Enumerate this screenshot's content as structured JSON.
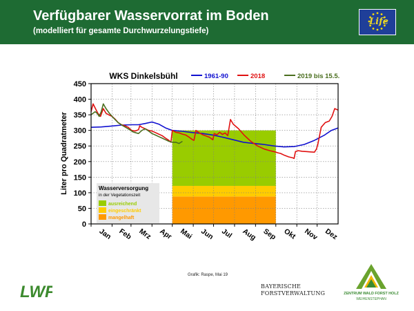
{
  "header": {
    "title": "Verfügbarer Wasservorrat im Boden",
    "subtitle": "(modelliert für gesamte Durchwurzelungstiefe)",
    "color": "#1e6b33"
  },
  "eu_logo": {
    "text": "Life",
    "icon": "eu-flag-icon"
  },
  "chart_data": {
    "type": "line",
    "title": "WKS Dinkelsbühl",
    "ylabel": "Liter pro Quadratmeter",
    "xlabel": "",
    "ylim": [
      0,
      450
    ],
    "yticks": [
      0,
      50,
      100,
      150,
      200,
      250,
      300,
      350,
      400,
      450
    ],
    "xlim": [
      0,
      365
    ],
    "months": [
      "Jan",
      "Feb",
      "Mrz",
      "Apr",
      "Mai",
      "Jun",
      "Jul",
      "Aug",
      "Sep",
      "Okt",
      "Nov",
      "Dez"
    ],
    "month_starts": [
      0,
      31,
      59,
      90,
      120,
      151,
      181,
      212,
      243,
      273,
      304,
      334
    ],
    "grid": true,
    "legend_position": "top",
    "series": [
      {
        "name": "1961-90",
        "color": "#1010d0",
        "x": [
          0,
          15,
          30,
          45,
          60,
          70,
          80,
          90,
          100,
          110,
          120,
          135,
          150,
          165,
          180,
          195,
          210,
          225,
          240,
          255,
          270,
          285,
          300,
          315,
          330,
          345,
          355,
          365
        ],
        "y": [
          310,
          311,
          314,
          317,
          318,
          318,
          322,
          327,
          320,
          308,
          300,
          297,
          293,
          290,
          285,
          278,
          270,
          262,
          258,
          255,
          250,
          247,
          248,
          255,
          268,
          285,
          300,
          308
        ]
      },
      {
        "name": "2018",
        "color": "#e01010",
        "x": [
          0,
          3,
          6,
          10,
          14,
          18,
          22,
          26,
          31,
          36,
          40,
          45,
          50,
          55,
          60,
          65,
          70,
          72,
          75,
          80,
          85,
          90,
          95,
          100,
          105,
          110,
          115,
          118,
          120,
          122,
          125,
          130,
          135,
          140,
          145,
          150,
          152,
          155,
          160,
          165,
          170,
          175,
          180,
          182,
          186,
          190,
          194,
          198,
          202,
          206,
          210,
          218,
          226,
          236,
          246,
          256,
          264,
          270,
          273,
          276,
          280,
          286,
          292,
          298,
          300,
          302,
          306,
          312,
          318,
          324,
          330,
          333,
          335,
          340,
          346,
          352,
          356,
          360,
          365
        ],
        "y": [
          360,
          385,
          372,
          355,
          345,
          370,
          355,
          350,
          345,
          335,
          325,
          318,
          315,
          310,
          300,
          298,
          302,
          315,
          310,
          305,
          300,
          298,
          293,
          288,
          283,
          275,
          268,
          262,
          300,
          298,
          294,
          292,
          288,
          285,
          278,
          270,
          268,
          300,
          292,
          286,
          282,
          278,
          270,
          290,
          286,
          294,
          287,
          292,
          283,
          335,
          320,
          305,
          285,
          265,
          250,
          240,
          235,
          232,
          230,
          228,
          226,
          220,
          215,
          212,
          210,
          232,
          235,
          233,
          232,
          231,
          230,
          240,
          255,
          310,
          325,
          330,
          345,
          370,
          365
        ]
      },
      {
        "name": "2019 bis 15.5.",
        "color": "#4a6e1e",
        "x": [
          0,
          3,
          6,
          9,
          12,
          15,
          18,
          22,
          27,
          33,
          40,
          47,
          55,
          60,
          62,
          65,
          70,
          75,
          80,
          85,
          90,
          95,
          100,
          105,
          110,
          115,
          120,
          125,
          130,
          135
        ],
        "y": [
          350,
          355,
          360,
          355,
          345,
          360,
          385,
          370,
          355,
          340,
          325,
          315,
          305,
          298,
          295,
          293,
          290,
          300,
          305,
          298,
          290,
          285,
          280,
          275,
          270,
          265,
          262,
          262,
          258,
          265
        ]
      }
    ],
    "bands": {
      "x_range": [
        120,
        273
      ],
      "stack": [
        {
          "label": "mangelhaft",
          "from": 0,
          "to": 88,
          "color": "#ff9900"
        },
        {
          "label": "eingeschränkt",
          "from": 88,
          "to": 122,
          "color": "#ffcc00"
        },
        {
          "label": "ausreichend",
          "from": 122,
          "to": 300,
          "color": "#99cc00"
        }
      ]
    },
    "inset_legend": {
      "title": "Wasserversorgung",
      "subtitle": "in der Vegetationszeit",
      "items": [
        {
          "label": "ausreichend",
          "color": "#99cc00"
        },
        {
          "label": "eingeschränkt",
          "color": "#ffcc00"
        },
        {
          "label": "mangelhaft",
          "color": "#ff9900"
        }
      ]
    }
  },
  "credit": "Grafik: Raspe, Mai 19",
  "footer": {
    "lwf_logo": "LWF",
    "bf_line1": "BAYERISCHE",
    "bf_line2": "FORSTVERWALTUNG",
    "zwfh_name": "ZENTRUM WALD FORST HOLZ",
    "zwfh_sub": "WEIHENSTEPHAN"
  }
}
